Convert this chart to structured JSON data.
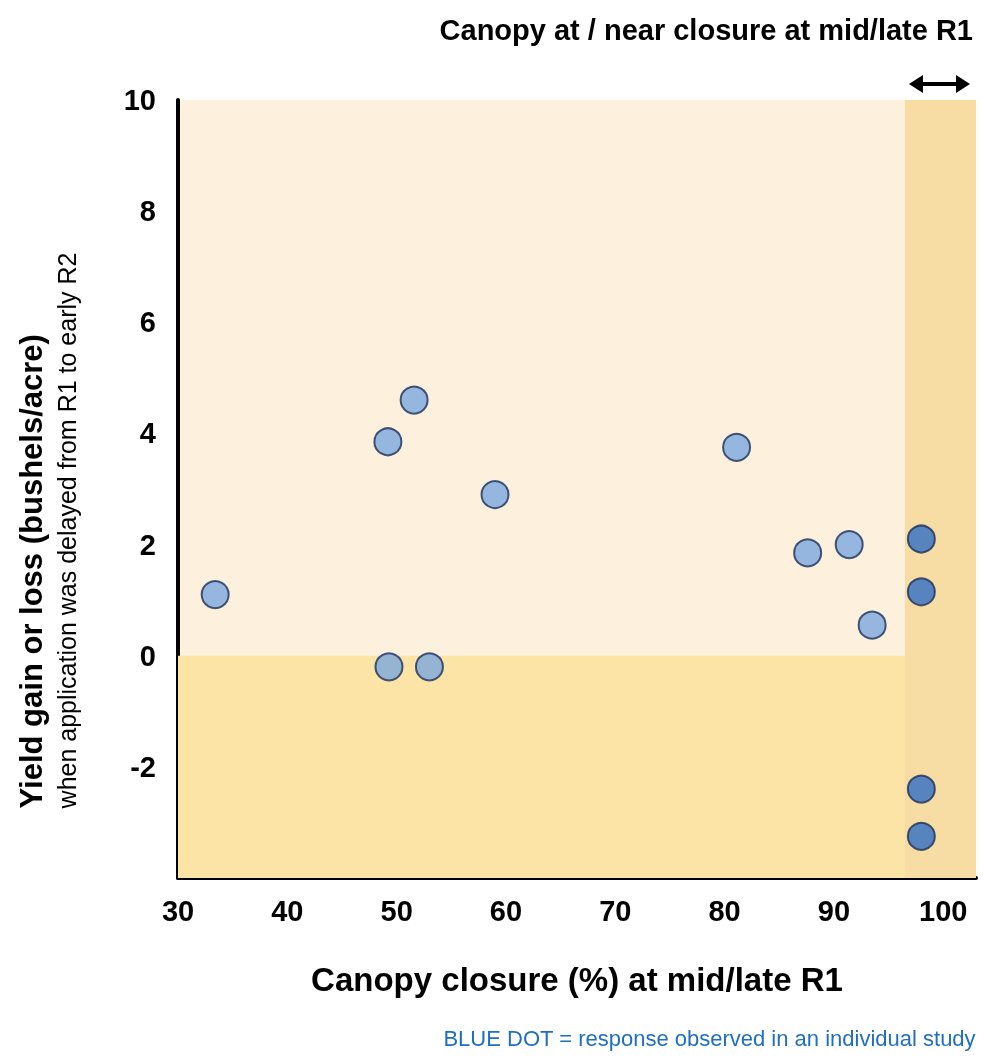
{
  "chart_data": {
    "type": "scatter",
    "title": "Canopy at / near closure at mid/late R1",
    "xlabel": "Canopy closure (%) at mid/late R1",
    "ylabel": "Yield gain or loss (bushels/acre)\nwhen application was delayed from R1 to early R2",
    "annotations": [
      "BLUE DOT = response observed in an individual study"
    ],
    "series": [
      {
        "color": "#7aa8de",
        "x": [
          33.4,
          49.2,
          51.6,
          49.3,
          53.0,
          59.0,
          81.1,
          87.6,
          91.4,
          93.5
        ],
        "values": [
          1.1,
          3.85,
          4.6,
          -0.2,
          -0.2,
          2.9,
          3.75,
          1.85,
          2.0,
          0.55
        ]
      },
      {
        "color": "#2e6ec4",
        "x": [
          98,
          98,
          98,
          98
        ],
        "values": [
          2.1,
          1.15,
          -2.4,
          -3.25
        ]
      }
    ],
    "xlim": [
      30,
      103
    ],
    "ylim": [
      -4,
      10
    ],
    "xticks": [
      30,
      40,
      50,
      60,
      70,
      80,
      90,
      100
    ],
    "yticks": [
      -2,
      0,
      2,
      4,
      6,
      8,
      10
    ],
    "bands": [
      {
        "axis": "y",
        "from": -4,
        "to": 0,
        "color": "#fce3a6"
      },
      {
        "axis": "x",
        "from": 96.5,
        "to": 103,
        "color": "#f7dca4"
      }
    ],
    "marker": "circle",
    "grid": false
  }
}
